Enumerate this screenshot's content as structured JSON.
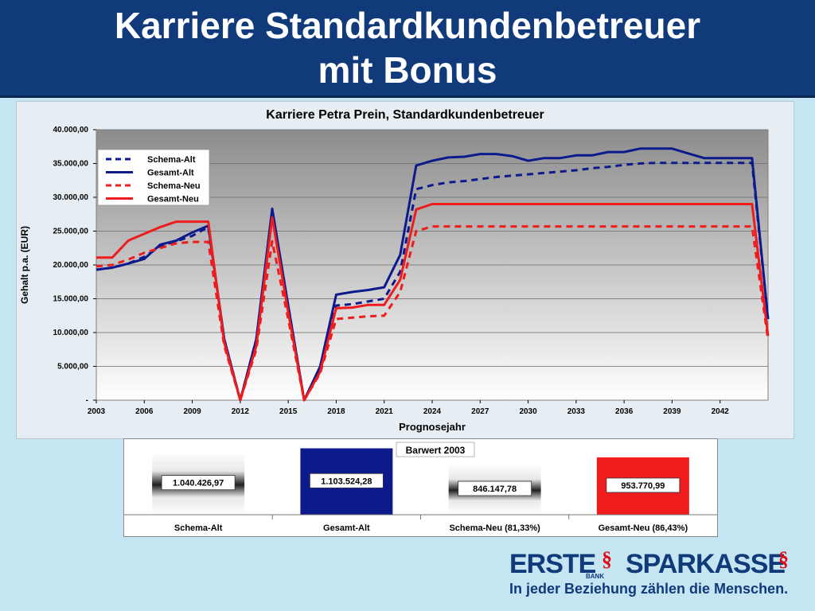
{
  "slide": {
    "title_line1": "Karriere Standardkundenbetreuer",
    "title_line2": "mit Bonus"
  },
  "footer": {
    "erste": "ERSTE",
    "bank": "BANK",
    "sparkasse": "SPARKASSE",
    "slogan": "In jeder Beziehung zählen die Menschen."
  },
  "colors": {
    "dark_blue": "#0d1a8c",
    "red": "#ee1c1c",
    "banner": "#103a7a",
    "brand_red": "#e30613"
  },
  "chart_data": [
    {
      "type": "line",
      "title": "Karriere Petra Prein, Standardkundenbetreuer",
      "xlabel": "Prognosejahr",
      "ylabel": "Gehalt p.a. (EUR)",
      "ylim": [
        0,
        40000
      ],
      "xlim": [
        2003,
        2045
      ],
      "xticks": [
        "2003",
        "2006",
        "2009",
        "2012",
        "2015",
        "2018",
        "2021",
        "2024",
        "2027",
        "2030",
        "2033",
        "2036",
        "2039",
        "2042"
      ],
      "yticks": [
        "-",
        "5.000,00",
        "10.000,00",
        "15.000,00",
        "20.000,00",
        "25.000,00",
        "30.000,00",
        "35.000,00",
        "40.000,00"
      ],
      "grid": true,
      "legend_position": "top-left",
      "series": [
        {
          "name": "Schema-Alt",
          "color": "#0d1a8c",
          "dashed": true,
          "points": [
            [
              2003,
              19300
            ],
            [
              2004,
              19600
            ],
            [
              2005,
              20200
            ],
            [
              2006,
              21200
            ],
            [
              2007,
              22800
            ],
            [
              2008,
              23500
            ],
            [
              2009,
              24300
            ],
            [
              2010,
              25600
            ],
            [
              2011,
              9000
            ],
            [
              2012,
              0
            ],
            [
              2013,
              9000
            ],
            [
              2014,
              28000
            ],
            [
              2015,
              14000
            ],
            [
              2016,
              0
            ],
            [
              2017,
              4500
            ],
            [
              2018,
              14000
            ],
            [
              2019,
              14200
            ],
            [
              2020,
              14600
            ],
            [
              2021,
              15000
            ],
            [
              2022,
              19000
            ],
            [
              2023,
              31200
            ],
            [
              2024,
              31800
            ],
            [
              2025,
              32200
            ],
            [
              2026,
              32400
            ],
            [
              2027,
              32700
            ],
            [
              2028,
              33000
            ],
            [
              2029,
              33200
            ],
            [
              2030,
              33400
            ],
            [
              2031,
              33600
            ],
            [
              2032,
              33800
            ],
            [
              2033,
              34000
            ],
            [
              2034,
              34300
            ],
            [
              2035,
              34500
            ],
            [
              2036,
              34800
            ],
            [
              2037,
              35000
            ],
            [
              2038,
              35100
            ],
            [
              2039,
              35100
            ],
            [
              2040,
              35100
            ],
            [
              2041,
              35100
            ],
            [
              2042,
              35100
            ],
            [
              2043,
              35100
            ],
            [
              2044,
              35100
            ],
            [
              2045,
              12000
            ]
          ]
        },
        {
          "name": "Gesamt-Alt",
          "color": "#0d1a8c",
          "dashed": false,
          "points": [
            [
              2003,
              19300
            ],
            [
              2004,
              19600
            ],
            [
              2005,
              20200
            ],
            [
              2006,
              20900
            ],
            [
              2007,
              23000
            ],
            [
              2008,
              23600
            ],
            [
              2009,
              24800
            ],
            [
              2010,
              25800
            ],
            [
              2011,
              9000
            ],
            [
              2012,
              0
            ],
            [
              2013,
              9000
            ],
            [
              2014,
              28300
            ],
            [
              2015,
              14000
            ],
            [
              2016,
              0
            ],
            [
              2017,
              5000
            ],
            [
              2018,
              15600
            ],
            [
              2019,
              16000
            ],
            [
              2020,
              16300
            ],
            [
              2021,
              16700
            ],
            [
              2022,
              21500
            ],
            [
              2023,
              34700
            ],
            [
              2024,
              35400
            ],
            [
              2025,
              35900
            ],
            [
              2026,
              36000
            ],
            [
              2027,
              36400
            ],
            [
              2028,
              36400
            ],
            [
              2029,
              36100
            ],
            [
              2030,
              35400
            ],
            [
              2031,
              35800
            ],
            [
              2032,
              35800
            ],
            [
              2033,
              36200
            ],
            [
              2034,
              36200
            ],
            [
              2035,
              36700
            ],
            [
              2036,
              36700
            ],
            [
              2037,
              37200
            ],
            [
              2038,
              37200
            ],
            [
              2039,
              37200
            ],
            [
              2040,
              36500
            ],
            [
              2041,
              35800
            ],
            [
              2042,
              35800
            ],
            [
              2043,
              35800
            ],
            [
              2044,
              35800
            ],
            [
              2045,
              12000
            ]
          ]
        },
        {
          "name": "Schema-Neu",
          "color": "#ee1c1c",
          "dashed": true,
          "points": [
            [
              2003,
              19800
            ],
            [
              2004,
              20000
            ],
            [
              2005,
              20800
            ],
            [
              2006,
              21800
            ],
            [
              2007,
              22500
            ],
            [
              2008,
              23200
            ],
            [
              2009,
              23400
            ],
            [
              2010,
              23400
            ],
            [
              2011,
              8000
            ],
            [
              2012,
              0
            ],
            [
              2013,
              7500
            ],
            [
              2014,
              23500
            ],
            [
              2015,
              12000
            ],
            [
              2016,
              0
            ],
            [
              2017,
              4000
            ],
            [
              2018,
              12000
            ],
            [
              2019,
              12200
            ],
            [
              2020,
              12400
            ],
            [
              2021,
              12500
            ],
            [
              2022,
              16000
            ],
            [
              2023,
              25000
            ],
            [
              2024,
              25700
            ],
            [
              2025,
              25700
            ],
            [
              2026,
              25700
            ],
            [
              2027,
              25700
            ],
            [
              2028,
              25700
            ],
            [
              2029,
              25700
            ],
            [
              2030,
              25700
            ],
            [
              2031,
              25700
            ],
            [
              2032,
              25700
            ],
            [
              2033,
              25700
            ],
            [
              2034,
              25700
            ],
            [
              2035,
              25700
            ],
            [
              2036,
              25700
            ],
            [
              2037,
              25700
            ],
            [
              2038,
              25700
            ],
            [
              2039,
              25700
            ],
            [
              2040,
              25700
            ],
            [
              2041,
              25700
            ],
            [
              2042,
              25700
            ],
            [
              2043,
              25700
            ],
            [
              2044,
              25700
            ],
            [
              2045,
              9000
            ]
          ]
        },
        {
          "name": "Gesamt-Neu",
          "color": "#ee1c1c",
          "dashed": false,
          "points": [
            [
              2003,
              21100
            ],
            [
              2004,
              21100
            ],
            [
              2005,
              23600
            ],
            [
              2006,
              24600
            ],
            [
              2007,
              25600
            ],
            [
              2008,
              26400
            ],
            [
              2009,
              26400
            ],
            [
              2010,
              26400
            ],
            [
              2011,
              8500
            ],
            [
              2012,
              0
            ],
            [
              2013,
              8000
            ],
            [
              2014,
              27000
            ],
            [
              2015,
              13000
            ],
            [
              2016,
              0
            ],
            [
              2017,
              4200
            ],
            [
              2018,
              13600
            ],
            [
              2019,
              13700
            ],
            [
              2020,
              14100
            ],
            [
              2021,
              14100
            ],
            [
              2022,
              17800
            ],
            [
              2023,
              28200
            ],
            [
              2024,
              29000
            ],
            [
              2025,
              29000
            ],
            [
              2026,
              29000
            ],
            [
              2027,
              29000
            ],
            [
              2028,
              29000
            ],
            [
              2029,
              29000
            ],
            [
              2030,
              29000
            ],
            [
              2031,
              29000
            ],
            [
              2032,
              29000
            ],
            [
              2033,
              29000
            ],
            [
              2034,
              29000
            ],
            [
              2035,
              29000
            ],
            [
              2036,
              29000
            ],
            [
              2037,
              29000
            ],
            [
              2038,
              29000
            ],
            [
              2039,
              29000
            ],
            [
              2040,
              29000
            ],
            [
              2041,
              29000
            ],
            [
              2042,
              29000
            ],
            [
              2043,
              29000
            ],
            [
              2044,
              29000
            ],
            [
              2045,
              9500
            ]
          ]
        }
      ]
    },
    {
      "type": "bar",
      "title": "Barwert 2003",
      "categories": [
        "Schema-Alt",
        "Gesamt-Alt",
        "Schema-Neu (81,33%)",
        "Gesamt-Neu (86,43%)"
      ],
      "values": [
        1040426.97,
        1103524.28,
        846147.78,
        953770.99
      ],
      "value_labels": [
        "1.040.426,97",
        "1.103.524,28",
        "846.147,78",
        "953.770,99"
      ],
      "colors": [
        "#9a9a9a",
        "#0d1a8c",
        "#9a9a9a",
        "#ee1c1c"
      ],
      "ylim": [
        0,
        1150000
      ]
    }
  ]
}
